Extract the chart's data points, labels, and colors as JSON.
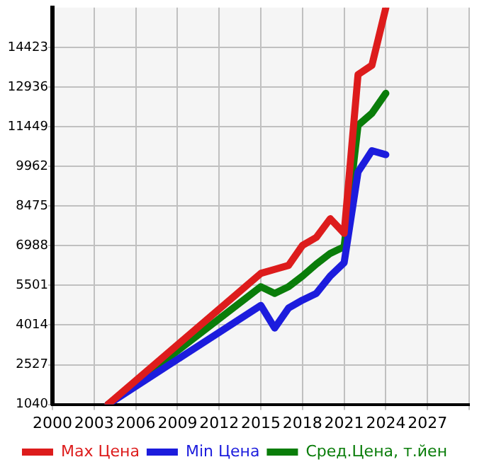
{
  "chart_data": {
    "type": "line",
    "x": [
      2004,
      2015,
      2016,
      2017,
      2018,
      2019,
      2020,
      2021,
      2022,
      2023,
      2024
    ],
    "series": [
      {
        "name": "Max Цена",
        "color": "#dd1c1c",
        "values": [
          1040,
          5950,
          6100,
          6250,
          7000,
          7300,
          8000,
          7450,
          13400,
          13750,
          15900
        ]
      },
      {
        "name": "Min Цена",
        "color": "#1c1cdd",
        "values": [
          1040,
          4750,
          3900,
          4650,
          4950,
          5200,
          5850,
          6350,
          9750,
          10550,
          10400
        ]
      },
      {
        "name": "Сред.Цена, т.йен",
        "color": "#0a7d0a",
        "values": [
          1040,
          5450,
          5200,
          5450,
          5850,
          6300,
          6700,
          6950,
          11500,
          11950,
          12700
        ]
      }
    ],
    "xlim": [
      2000,
      2030
    ],
    "xticks": [
      2000,
      2003,
      2006,
      2009,
      2012,
      2015,
      2018,
      2021,
      2024,
      2027,
      {
        "value": 2030,
        "label": null
      }
    ],
    "ylim": [
      1040,
      15910
    ],
    "yticks": [
      1040,
      2527,
      4014,
      5501,
      6988,
      8475,
      9962,
      11449,
      12936,
      14423
    ],
    "grid": true,
    "legend": "bottom",
    "marker": "none",
    "line_style": "solid"
  }
}
